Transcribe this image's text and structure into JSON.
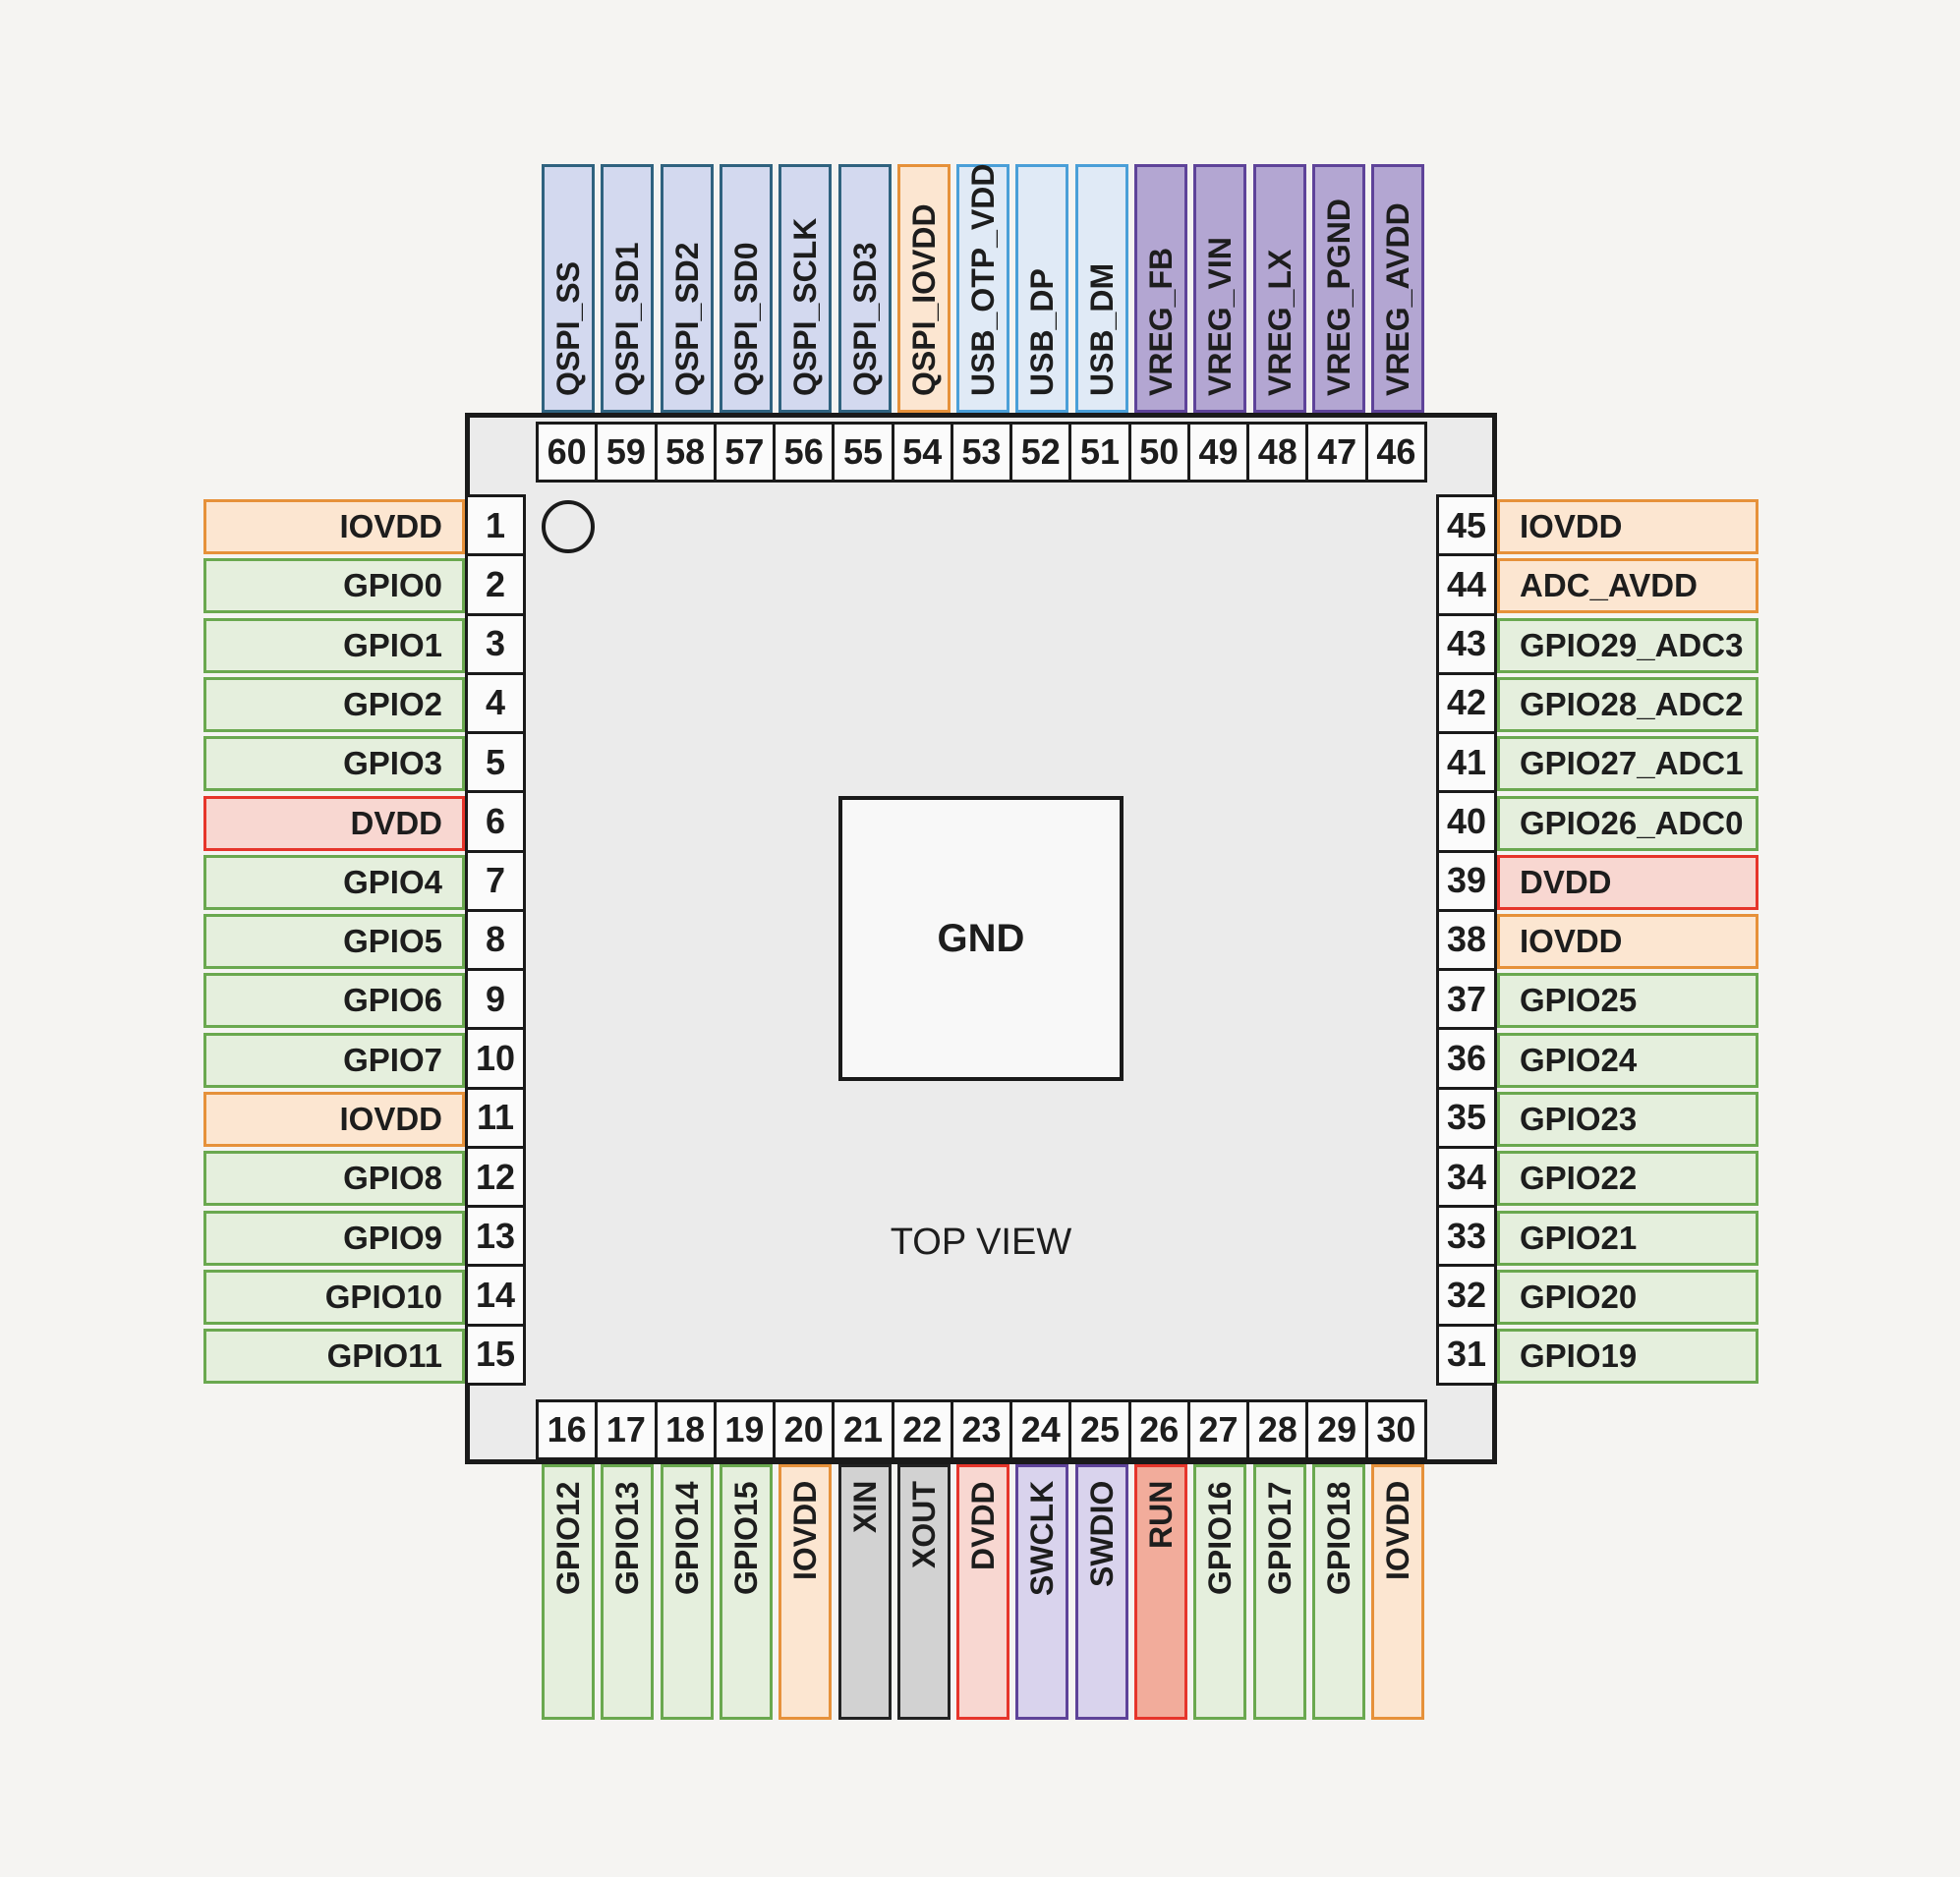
{
  "center": {
    "gnd_label": "GND",
    "view_label": "TOP VIEW"
  },
  "colors": {
    "page_bg": "#f5f4f2",
    "chip_fill": "#ebebeb",
    "chip_border": "#1a1a1a",
    "number_cell_fill": "#fbfbfb",
    "gnd_pad_fill": "#f8f8f8",
    "text": "#1d1d1d",
    "categories": {
      "gpio": {
        "fill": "#e5efdd",
        "border": "#6aa84f"
      },
      "iovdd": {
        "fill": "#fce6d1",
        "border": "#e6913a"
      },
      "dvdd": {
        "fill": "#f8d7d1",
        "border": "#e6352b"
      },
      "qspi": {
        "fill": "#d3d9ef",
        "border": "#2f627f"
      },
      "usb": {
        "fill": "#e0eaf6",
        "border": "#4a9fd8"
      },
      "vreg": {
        "fill": "#b3a6d2",
        "border": "#5e4399"
      },
      "swd": {
        "fill": "#d9d3ed",
        "border": "#5e4399"
      },
      "xtal": {
        "fill": "#d2d2d2",
        "border": "#222222"
      },
      "run": {
        "fill": "#f2ac9b",
        "border": "#e6352b"
      }
    }
  },
  "pins": {
    "top": [
      {
        "num": "60",
        "label": "QSPI_SS",
        "type": "qspi"
      },
      {
        "num": "59",
        "label": "QSPI_SD1",
        "type": "qspi"
      },
      {
        "num": "58",
        "label": "QSPI_SD2",
        "type": "qspi"
      },
      {
        "num": "57",
        "label": "QSPI_SD0",
        "type": "qspi"
      },
      {
        "num": "56",
        "label": "QSPI_SCLK",
        "type": "qspi"
      },
      {
        "num": "55",
        "label": "QSPI_SD3",
        "type": "qspi"
      },
      {
        "num": "54",
        "label": "QSPI_IOVDD",
        "type": "iovdd"
      },
      {
        "num": "53",
        "label": "USB_OTP_VDD",
        "type": "usb"
      },
      {
        "num": "52",
        "label": "USB_DP",
        "type": "usb"
      },
      {
        "num": "51",
        "label": "USB_DM",
        "type": "usb"
      },
      {
        "num": "50",
        "label": "VREG_FB",
        "type": "vreg"
      },
      {
        "num": "49",
        "label": "VREG_VIN",
        "type": "vreg"
      },
      {
        "num": "48",
        "label": "VREG_LX",
        "type": "vreg"
      },
      {
        "num": "47",
        "label": "VREG_PGND",
        "type": "vreg"
      },
      {
        "num": "46",
        "label": "VREG_AVDD",
        "type": "vreg"
      }
    ],
    "left": [
      {
        "num": "1",
        "label": "IOVDD",
        "type": "iovdd"
      },
      {
        "num": "2",
        "label": "GPIO0",
        "type": "gpio"
      },
      {
        "num": "3",
        "label": "GPIO1",
        "type": "gpio"
      },
      {
        "num": "4",
        "label": "GPIO2",
        "type": "gpio"
      },
      {
        "num": "5",
        "label": "GPIO3",
        "type": "gpio"
      },
      {
        "num": "6",
        "label": "DVDD",
        "type": "dvdd"
      },
      {
        "num": "7",
        "label": "GPIO4",
        "type": "gpio"
      },
      {
        "num": "8",
        "label": "GPIO5",
        "type": "gpio"
      },
      {
        "num": "9",
        "label": "GPIO6",
        "type": "gpio"
      },
      {
        "num": "10",
        "label": "GPIO7",
        "type": "gpio"
      },
      {
        "num": "11",
        "label": "IOVDD",
        "type": "iovdd"
      },
      {
        "num": "12",
        "label": "GPIO8",
        "type": "gpio"
      },
      {
        "num": "13",
        "label": "GPIO9",
        "type": "gpio"
      },
      {
        "num": "14",
        "label": "GPIO10",
        "type": "gpio"
      },
      {
        "num": "15",
        "label": "GPIO11",
        "type": "gpio"
      }
    ],
    "right": [
      {
        "num": "45",
        "label": "IOVDD",
        "type": "iovdd"
      },
      {
        "num": "44",
        "label": "ADC_AVDD",
        "type": "iovdd"
      },
      {
        "num": "43",
        "label": "GPIO29_ADC3",
        "type": "gpio"
      },
      {
        "num": "42",
        "label": "GPIO28_ADC2",
        "type": "gpio"
      },
      {
        "num": "41",
        "label": "GPIO27_ADC1",
        "type": "gpio"
      },
      {
        "num": "40",
        "label": "GPIO26_ADC0",
        "type": "gpio"
      },
      {
        "num": "39",
        "label": "DVDD",
        "type": "dvdd"
      },
      {
        "num": "38",
        "label": "IOVDD",
        "type": "iovdd"
      },
      {
        "num": "37",
        "label": "GPIO25",
        "type": "gpio"
      },
      {
        "num": "36",
        "label": "GPIO24",
        "type": "gpio"
      },
      {
        "num": "35",
        "label": "GPIO23",
        "type": "gpio"
      },
      {
        "num": "34",
        "label": "GPIO22",
        "type": "gpio"
      },
      {
        "num": "33",
        "label": "GPIO21",
        "type": "gpio"
      },
      {
        "num": "32",
        "label": "GPIO20",
        "type": "gpio"
      },
      {
        "num": "31",
        "label": "GPIO19",
        "type": "gpio"
      }
    ],
    "bottom": [
      {
        "num": "16",
        "label": "GPIO12",
        "type": "gpio"
      },
      {
        "num": "17",
        "label": "GPIO13",
        "type": "gpio"
      },
      {
        "num": "18",
        "label": "GPIO14",
        "type": "gpio"
      },
      {
        "num": "19",
        "label": "GPIO15",
        "type": "gpio"
      },
      {
        "num": "20",
        "label": "IOVDD",
        "type": "iovdd"
      },
      {
        "num": "21",
        "label": "XIN",
        "type": "xtal"
      },
      {
        "num": "22",
        "label": "XOUT",
        "type": "xtal"
      },
      {
        "num": "23",
        "label": "DVDD",
        "type": "dvdd"
      },
      {
        "num": "24",
        "label": "SWCLK",
        "type": "swd"
      },
      {
        "num": "25",
        "label": "SWDIO",
        "type": "swd"
      },
      {
        "num": "26",
        "label": "RUN",
        "type": "run"
      },
      {
        "num": "27",
        "label": "GPIO16",
        "type": "gpio"
      },
      {
        "num": "28",
        "label": "GPIO17",
        "type": "gpio"
      },
      {
        "num": "29",
        "label": "GPIO18",
        "type": "gpio"
      },
      {
        "num": "30",
        "label": "IOVDD",
        "type": "iovdd"
      }
    ]
  }
}
